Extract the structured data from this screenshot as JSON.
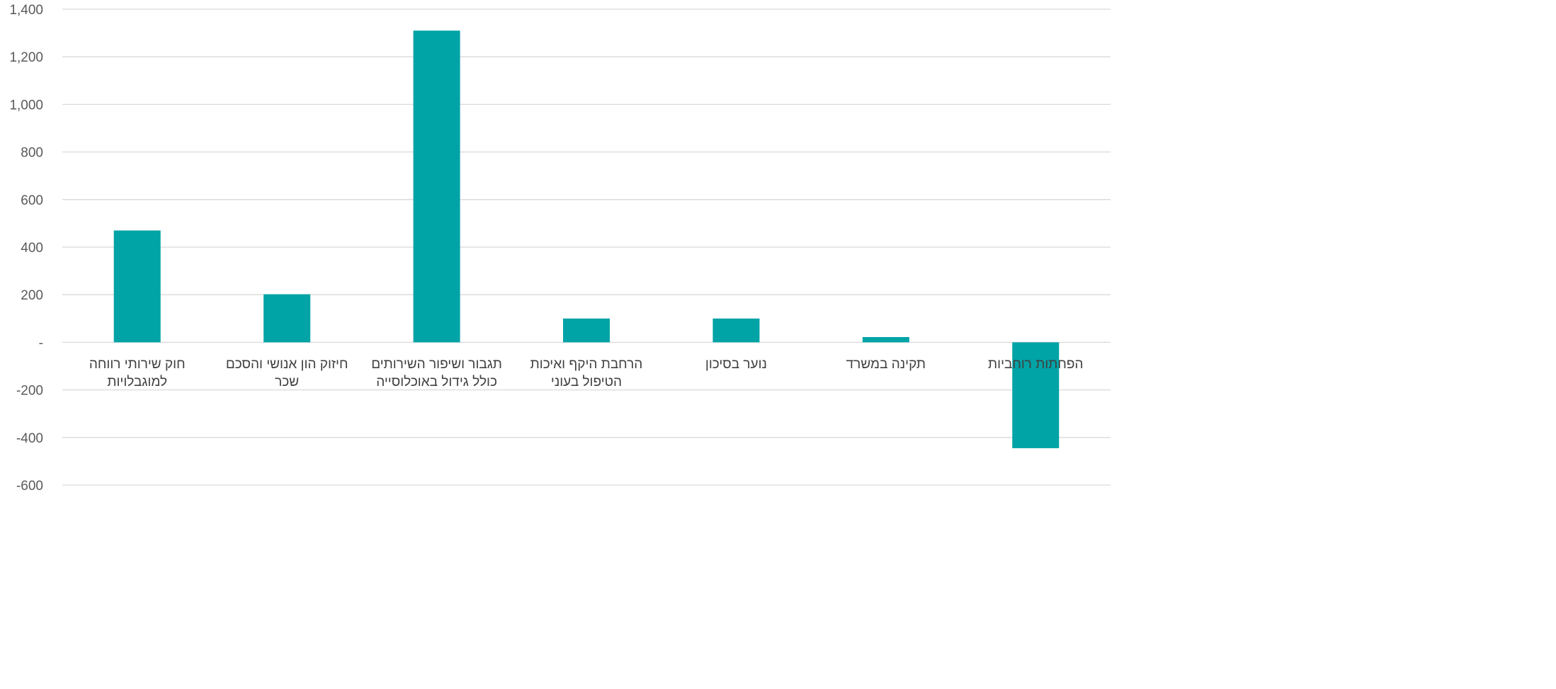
{
  "chart_data": {
    "type": "bar",
    "title": "",
    "xlabel": "",
    "ylabel": "",
    "ylim": [
      -600,
      1400
    ],
    "yticks": [
      1400,
      1200,
      1000,
      800,
      600,
      400,
      200,
      0,
      -200,
      -400,
      -600
    ],
    "ytick_labels": [
      "1,400",
      "1,200",
      "1,000",
      "800",
      "600",
      "400",
      "200",
      "-",
      "-200",
      "-400",
      "-600"
    ],
    "grid": true,
    "legend": "none",
    "bar_color": "#00A3A6",
    "categories": [
      [
        "חוק שירותי רווחה",
        "למוגבלויות"
      ],
      [
        "חיזוק הון אנושי והסכם",
        "שכר"
      ],
      [
        "תגבור ושיפור השירותים",
        "כולל גידול באוכלוסייה"
      ],
      [
        "הרחבת היקף ואיכות",
        "הטיפול בעוני"
      ],
      [
        "נוער בסיכון"
      ],
      [
        "תקינה במשרד"
      ],
      [
        "הפחתות רוחביות"
      ]
    ],
    "values": [
      470,
      202,
      1310,
      100,
      100,
      22,
      -445
    ]
  }
}
